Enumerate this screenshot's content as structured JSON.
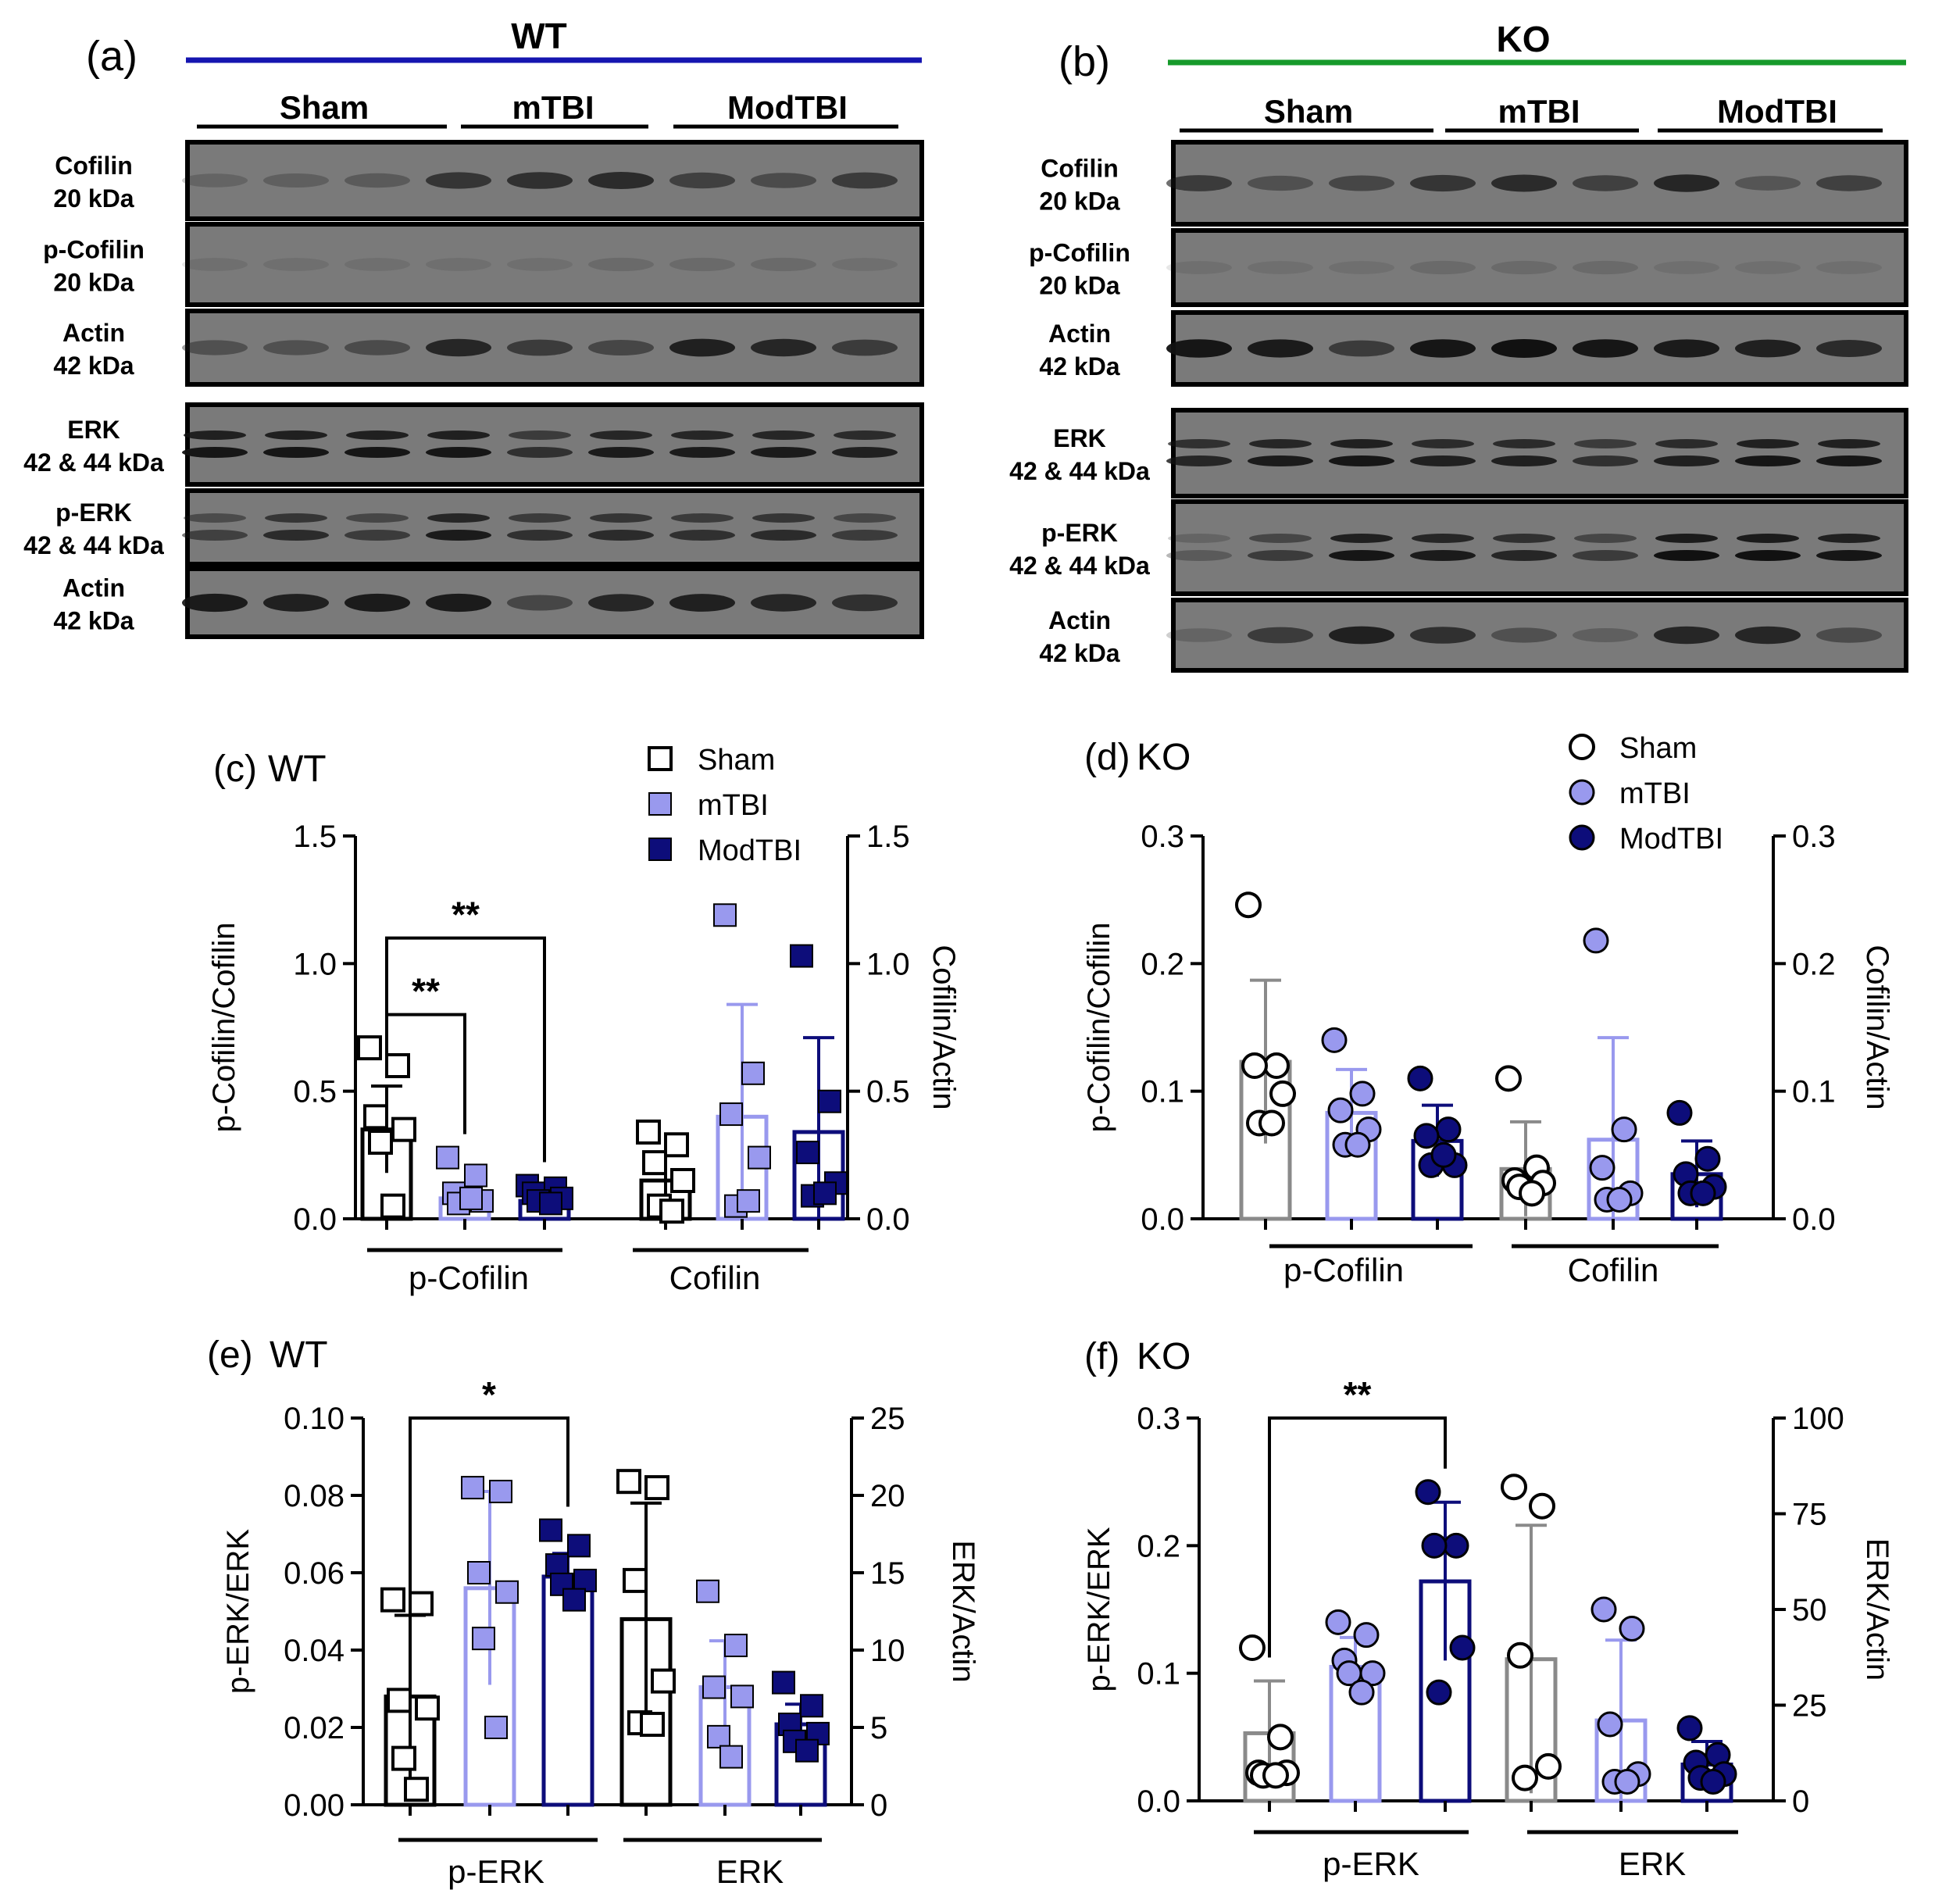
{
  "colors": {
    "sham": "#000000",
    "mtbi": "#9999ee",
    "modtbi": "#0d0d7a",
    "wt_line": "#1515b0",
    "ko_line": "#169a2b",
    "blot_bg": "#7a7a7a",
    "ko_sham": "#8a8a8a"
  },
  "blots": [
    {
      "panel": "(a)",
      "genotype": "WT",
      "groups": [
        "Sham",
        "mTBI",
        "ModTBI"
      ],
      "strips": [
        {
          "label": [
            "Cofilin",
            "20 kDa"
          ],
          "bands": [
            0.2,
            0.25,
            0.3,
            0.65,
            0.7,
            0.75,
            0.55,
            0.45,
            0.6
          ],
          "double": false
        },
        {
          "label": [
            "p-Cofilin",
            "20 kDa"
          ],
          "bands": [
            0.1,
            0.1,
            0.1,
            0.1,
            0.1,
            0.15,
            0.15,
            0.15,
            0.1
          ],
          "double": false
        },
        {
          "label": [
            "Actin",
            "42 kDa"
          ],
          "bands": [
            0.4,
            0.4,
            0.45,
            0.8,
            0.6,
            0.5,
            0.85,
            0.8,
            0.6
          ],
          "double": false
        },
        {
          "label": [
            "ERK",
            "42 & 44 kDa"
          ],
          "bands": [
            0.85,
            0.85,
            0.85,
            0.85,
            0.6,
            0.8,
            0.8,
            0.8,
            0.75
          ],
          "double": true
        },
        {
          "label": [
            "p-ERK",
            "42 & 44 kDa"
          ],
          "bands": [
            0.45,
            0.65,
            0.5,
            0.8,
            0.6,
            0.65,
            0.6,
            0.65,
            0.5
          ],
          "double": true
        },
        {
          "label": [
            "Actin",
            "42 kDa"
          ],
          "bands": [
            0.9,
            0.85,
            0.9,
            0.9,
            0.5,
            0.8,
            0.85,
            0.8,
            0.7
          ],
          "double": false
        }
      ]
    },
    {
      "panel": "(b)",
      "genotype": "KO",
      "groups": [
        "Sham",
        "mTBI",
        "ModTBI"
      ],
      "strips": [
        {
          "label": [
            "Cofilin",
            "20 kDa"
          ],
          "bands": [
            0.6,
            0.4,
            0.5,
            0.65,
            0.75,
            0.55,
            0.8,
            0.35,
            0.55
          ],
          "double": false
        },
        {
          "label": [
            "p-Cofilin",
            "20 kDa"
          ],
          "bands": [
            0.1,
            0.1,
            0.1,
            0.15,
            0.15,
            0.15,
            0.1,
            0.1,
            0.1
          ],
          "double": false
        },
        {
          "label": [
            "Actin",
            "42 kDa"
          ],
          "bands": [
            0.95,
            0.9,
            0.6,
            0.95,
            1,
            0.95,
            0.9,
            0.85,
            0.75
          ],
          "double": false
        },
        {
          "label": [
            "ERK",
            "42 & 44 kDa"
          ],
          "bands": [
            0.7,
            0.8,
            0.85,
            0.75,
            0.75,
            0.6,
            0.75,
            0.85,
            0.85
          ],
          "double": true
        },
        {
          "label": [
            "p-ERK",
            "42 & 44 kDa"
          ],
          "bands": [
            0.2,
            0.5,
            0.85,
            0.8,
            0.7,
            0.5,
            0.9,
            0.9,
            0.85
          ],
          "double": true
        },
        {
          "label": [
            "Actin",
            "42 kDa"
          ],
          "bands": [
            0.2,
            0.6,
            0.85,
            0.7,
            0.4,
            0.25,
            0.8,
            0.8,
            0.45
          ],
          "double": false
        }
      ]
    }
  ],
  "chart_data": [
    {
      "panel": "(c)",
      "title": "WT",
      "type": "bar",
      "marker": "square",
      "ylabel_left": "p-Cofilin/Cofilin",
      "ylabel_right": "Cofilin/Actin",
      "ylim_left": [
        0,
        1.5
      ],
      "ylim_right": [
        0,
        1.5
      ],
      "yticks_left": [
        "0.0",
        "0.5",
        "1.0",
        "1.5"
      ],
      "yticks_right": [
        "0.0",
        "0.5",
        "1.0",
        "1.5"
      ],
      "group_labels": [
        "p-Cofilin",
        "Cofilin"
      ],
      "legend": [
        "Sham",
        "mTBI",
        "ModTBI"
      ],
      "bars": [
        {
          "group": "Sham",
          "axis": "left",
          "mean": 0.35,
          "sd": 0.17,
          "points": [
            0.67,
            0.6,
            0.4,
            0.35,
            0.3,
            0.05
          ]
        },
        {
          "group": "mTBI",
          "axis": "left",
          "mean": 0.08,
          "sd": 0.02,
          "points": [
            0.24,
            0.17,
            0.1,
            0.07,
            0.06,
            0.08
          ]
        },
        {
          "group": "ModTBI",
          "axis": "left",
          "mean": 0.07,
          "sd": 0.02,
          "points": [
            0.13,
            0.12,
            0.1,
            0.08,
            0.07,
            0.06
          ]
        },
        {
          "group": "Sham",
          "axis": "right",
          "mean": 0.15,
          "sd": 0.1,
          "points": [
            0.34,
            0.29,
            0.22,
            0.15,
            0.05,
            0.03
          ]
        },
        {
          "group": "mTBI",
          "axis": "right",
          "mean": 0.4,
          "sd": 0.44,
          "points": [
            1.19,
            0.57,
            0.41,
            0.24,
            0.05,
            0.07
          ]
        },
        {
          "group": "ModTBI",
          "axis": "right",
          "mean": 0.34,
          "sd": 0.37,
          "points": [
            1.03,
            0.46,
            0.26,
            0.14,
            0.09,
            0.1
          ]
        }
      ],
      "significance": [
        {
          "from": 0,
          "to": 1,
          "label": "**",
          "y": 0.8
        },
        {
          "from": 0,
          "to": 2,
          "label": "**",
          "y": 1.1
        }
      ]
    },
    {
      "panel": "(d)",
      "title": "KO",
      "type": "bar",
      "marker": "circle",
      "ylabel_left": "p-Cofilin/Cofilin",
      "ylabel_right": "Cofilin/Actin",
      "ylim_left": [
        0,
        0.3
      ],
      "ylim_right": [
        0,
        0.3
      ],
      "yticks_left": [
        "0.0",
        "0.1",
        "0.2",
        "0.3"
      ],
      "yticks_right": [
        "0.0",
        "0.1",
        "0.2",
        "0.3"
      ],
      "group_labels": [
        "p-Cofilin",
        "Cofilin"
      ],
      "legend": [
        "Sham",
        "mTBI",
        "ModTBI"
      ],
      "bars": [
        {
          "group": "Sham",
          "axis": "left",
          "mean": 0.123,
          "sd": 0.064,
          "points": [
            0.246,
            0.12,
            0.12,
            0.098,
            0.075,
            0.075
          ]
        },
        {
          "group": "mTBI",
          "axis": "left",
          "mean": 0.083,
          "sd": 0.034,
          "points": [
            0.14,
            0.098,
            0.085,
            0.07,
            0.058,
            0.058
          ]
        },
        {
          "group": "ModTBI",
          "axis": "left",
          "mean": 0.061,
          "sd": 0.028,
          "points": [
            0.11,
            0.07,
            0.065,
            0.042,
            0.042,
            0.05
          ]
        },
        {
          "group": "Sham",
          "axis": "right",
          "mean": 0.039,
          "sd": 0.037,
          "points": [
            0.11,
            0.04,
            0.03,
            0.028,
            0.025,
            0.02
          ]
        },
        {
          "group": "mTBI",
          "axis": "right",
          "mean": 0.062,
          "sd": 0.08,
          "points": [
            0.218,
            0.07,
            0.04,
            0.02,
            0.015,
            0.015
          ]
        },
        {
          "group": "ModTBI",
          "axis": "right",
          "mean": 0.035,
          "sd": 0.026,
          "points": [
            0.083,
            0.047,
            0.035,
            0.025,
            0.02,
            0.02
          ]
        }
      ],
      "significance": []
    },
    {
      "panel": "(e)",
      "title": "WT",
      "type": "bar",
      "marker": "square",
      "ylabel_left": "p-ERK/ERK",
      "ylabel_right": "ERK/Actin",
      "ylim_left": [
        0,
        0.1
      ],
      "ylim_right": [
        0,
        25
      ],
      "yticks_left": [
        "0.00",
        "0.02",
        "0.04",
        "0.06",
        "0.08",
        "0.10"
      ],
      "yticks_right": [
        "0",
        "5",
        "10",
        "15",
        "20",
        "25"
      ],
      "group_labels": [
        "p-ERK",
        "ERK"
      ],
      "legend": [],
      "bars": [
        {
          "group": "Sham",
          "axis": "left",
          "mean": 0.028,
          "sd": 0.021,
          "points": [
            0.053,
            0.052,
            0.027,
            0.025,
            0.012,
            0.004
          ]
        },
        {
          "group": "mTBI",
          "axis": "left",
          "mean": 0.056,
          "sd": 0.025,
          "points": [
            0.082,
            0.081,
            0.06,
            0.055,
            0.043,
            0.02
          ]
        },
        {
          "group": "ModTBI",
          "axis": "left",
          "mean": 0.059,
          "sd": 0.006,
          "points": [
            0.071,
            0.067,
            0.062,
            0.058,
            0.057,
            0.053
          ]
        },
        {
          "group": "Sham",
          "axis": "right",
          "mean": 12,
          "sd": 7.5,
          "points": [
            20.9,
            20.5,
            14.5,
            8,
            5.3,
            5.2
          ]
        },
        {
          "group": "mTBI",
          "axis": "right",
          "mean": 7.6,
          "sd": 3,
          "points": [
            13.8,
            10.3,
            7.6,
            7,
            4.4,
            3.1
          ]
        },
        {
          "group": "ModTBI",
          "axis": "right",
          "mean": 5.2,
          "sd": 1.3,
          "points": [
            7.9,
            6.4,
            5.2,
            4.6,
            4.1,
            3.5
          ]
        }
      ],
      "significance": [
        {
          "from": 0,
          "to": 2,
          "label": "*",
          "y": 0.1
        }
      ]
    },
    {
      "panel": "(f)",
      "title": "KO",
      "type": "bar",
      "marker": "circle",
      "ylabel_left": "p-ERK/ERK",
      "ylabel_right": "ERK/Actin",
      "ylim_left": [
        0,
        0.3
      ],
      "ylim_right": [
        0,
        100
      ],
      "yticks_left": [
        "0.0",
        "0.1",
        "0.2",
        "0.3"
      ],
      "yticks_right": [
        "0",
        "25",
        "50",
        "75",
        "100"
      ],
      "group_labels": [
        "p-ERK",
        "ERK"
      ],
      "legend": [],
      "bars": [
        {
          "group": "Sham",
          "axis": "left",
          "mean": 0.053,
          "sd": 0.041,
          "points": [
            0.12,
            0.05,
            0.022,
            0.022,
            0.02,
            0.02
          ]
        },
        {
          "group": "mTBI",
          "axis": "left",
          "mean": 0.105,
          "sd": 0.023,
          "points": [
            0.14,
            0.13,
            0.11,
            0.1,
            0.1,
            0.085
          ]
        },
        {
          "group": "ModTBI",
          "axis": "left",
          "mean": 0.172,
          "sd": 0.062,
          "points": [
            0.242,
            0.2,
            0.2,
            0.12,
            0.085
          ]
        },
        {
          "group": "Sham",
          "axis": "right",
          "mean": 37,
          "sd": 35,
          "points": [
            82,
            77,
            38,
            9,
            6
          ]
        },
        {
          "group": "mTBI",
          "axis": "right",
          "mean": 21,
          "sd": 21,
          "points": [
            50,
            45,
            20,
            7,
            5,
            5
          ]
        },
        {
          "group": "ModTBI",
          "axis": "right",
          "mean": 9.5,
          "sd": 6,
          "points": [
            19,
            12,
            10,
            7,
            6,
            5
          ]
        }
      ],
      "significance": [
        {
          "from": 0,
          "to": 2,
          "label": "**",
          "y": 0.3
        }
      ]
    }
  ]
}
